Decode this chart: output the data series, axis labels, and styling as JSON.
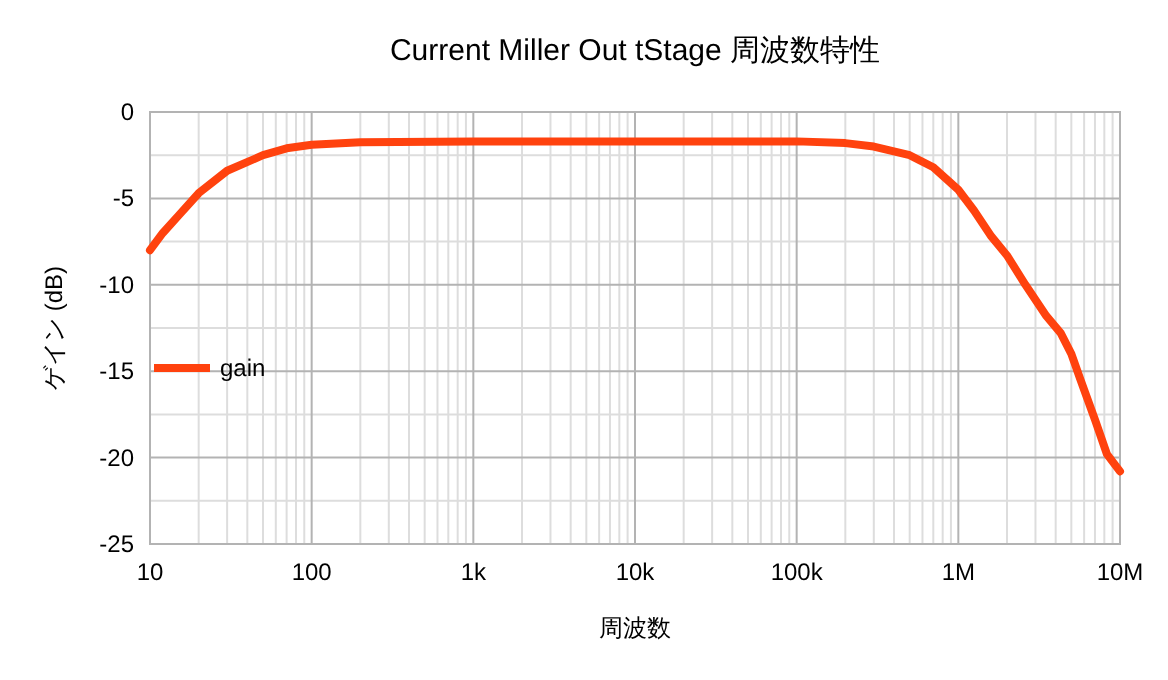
{
  "chart_data": {
    "type": "line",
    "title": "Current Miller Out tStage  周波数特性",
    "xlabel": "周波数",
    "ylabel": "ゲイン (dB)",
    "log": "x",
    "grid": true,
    "legend": "left",
    "marker": "none",
    "line_style": "solid",
    "xlim": [
      10,
      10000000
    ],
    "xticks": [
      {
        "value": 10,
        "label": "10"
      },
      {
        "value": 100,
        "label": "100"
      },
      {
        "value": 1000,
        "label": "1k"
      },
      {
        "value": 10000,
        "label": "10k"
      },
      {
        "value": 100000,
        "label": "100k"
      },
      {
        "value": 1000000,
        "label": "1M"
      },
      {
        "value": 10000000,
        "label": "10M"
      }
    ],
    "ylim": [
      -25,
      0
    ],
    "yticks": [
      -25,
      -20,
      -15,
      -10,
      -5,
      0
    ],
    "series": [
      {
        "name": "gain",
        "color": "#ff420e",
        "x": [
          10,
          12,
          15,
          20,
          30,
          50,
          70,
          100,
          200,
          1000,
          10000,
          100000,
          200000,
          300000,
          500000,
          700000,
          1000000,
          1250000,
          1600000,
          2000000,
          2600000,
          3500000,
          4300000,
          5000000,
          5700000,
          7000000,
          8300000,
          10000000
        ],
        "values": [
          -8,
          -7,
          -6,
          -4.7,
          -3.4,
          -2.5,
          -2.1,
          -1.9,
          -1.75,
          -1.7,
          -1.7,
          -1.7,
          -1.8,
          -2,
          -2.5,
          -3.2,
          -4.5,
          -5.7,
          -7.2,
          -8.3,
          -10,
          -11.8,
          -12.8,
          -14,
          -15.5,
          -17.8,
          -19.8,
          -20.8
        ]
      }
    ]
  }
}
